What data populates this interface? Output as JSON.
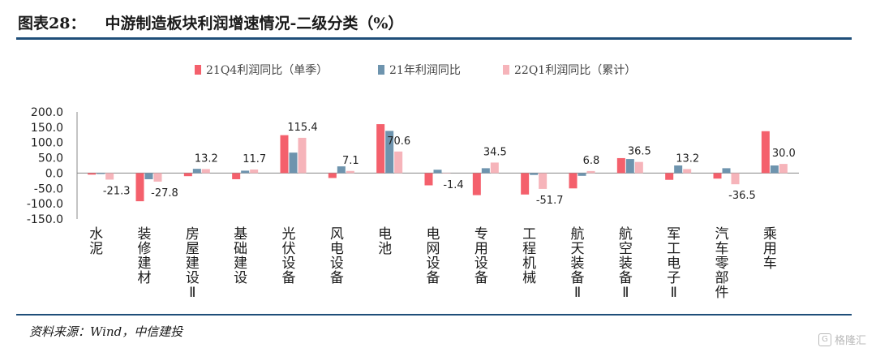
{
  "header": {
    "figure_label": "图表28：",
    "title": "中游制造板块利润增速情况-二级分类（%）"
  },
  "source": "资料来源：Wind，中信建投",
  "watermark": "格隆汇",
  "chart_data": {
    "type": "bar",
    "categories": [
      "水泥",
      "装修建材",
      "房屋建设Ⅱ",
      "基础建设",
      "光伏设备",
      "风电设备",
      "电池",
      "电网设备",
      "专用设备",
      "工程机械",
      "航天装备Ⅱ",
      "航空装备Ⅱ",
      "军工电子Ⅱ",
      "汽车零部件",
      "乘用车"
    ],
    "series": [
      {
        "name": "21Q4利润同比（单季）",
        "color": "#f4606c",
        "values": [
          -5,
          -92,
          -10,
          -20,
          124,
          -16,
          160,
          -40,
          -72,
          -70,
          -50,
          49,
          -22,
          -18,
          137
        ]
      },
      {
        "name": "21年利润同比",
        "color": "#6e94ae",
        "values": [
          -3,
          -20,
          14,
          8,
          67,
          22,
          138,
          11,
          16,
          -6,
          -9,
          46,
          25,
          16,
          25
        ]
      },
      {
        "name": "22Q1利润同比（累计）",
        "color": "#f6b4ba",
        "values": [
          -21.3,
          -27.8,
          13.2,
          11.7,
          115.4,
          7.1,
          70.6,
          -1.4,
          34.5,
          -51.7,
          6.8,
          36.5,
          13.2,
          -36.5,
          30.0
        ]
      }
    ],
    "data_labels": [
      "-21.3",
      "-27.8",
      "13.2",
      "11.7",
      "115.4",
      "7.1",
      "70.6",
      "-1.4",
      "34.5",
      "-51.7",
      "6.8",
      "36.5",
      "13.2",
      "-36.5",
      "30.0"
    ],
    "yticks": [
      "200.0",
      "150.0",
      "100.0",
      "50.0",
      "0.0",
      "-50.0",
      "-100.0",
      "-150.0"
    ],
    "ylim": [
      -150,
      200
    ],
    "legend_position": "top",
    "grid": false
  }
}
